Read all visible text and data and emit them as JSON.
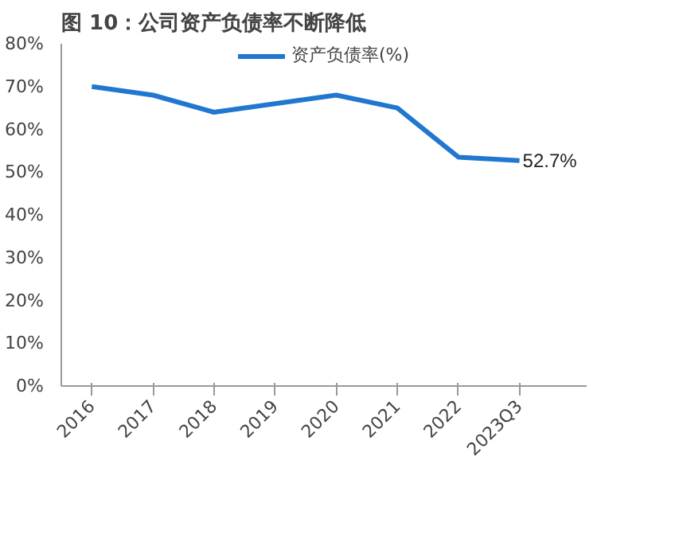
{
  "chart_data": {
    "type": "line",
    "title": "图 10：公司资产负债率不断降低",
    "categories": [
      "2016",
      "2017",
      "2018",
      "2019",
      "2020",
      "2021",
      "2022",
      "2023Q3"
    ],
    "series": [
      {
        "name": "资产负债率(%)",
        "color": "#1f77d0",
        "values": [
          70,
          68,
          64,
          66,
          68,
          65,
          53.5,
          52.7
        ],
        "value_labels": [
          null,
          null,
          null,
          null,
          null,
          null,
          null,
          "52.7%"
        ]
      }
    ],
    "ylim": [
      0,
      80
    ],
    "yticks": [
      {
        "value": 0,
        "label": "0%"
      },
      {
        "value": 10,
        "label": "10%"
      },
      {
        "value": 20,
        "label": "20%"
      },
      {
        "value": 30,
        "label": "30%"
      },
      {
        "value": 40,
        "label": "40%"
      },
      {
        "value": 50,
        "label": "50%"
      },
      {
        "value": 60,
        "label": "60%"
      },
      {
        "value": 70,
        "label": "70%"
      },
      {
        "value": 80,
        "label": "80%"
      }
    ],
    "grid": false,
    "legend": "top",
    "marker": "none",
    "line_style": "solid"
  }
}
